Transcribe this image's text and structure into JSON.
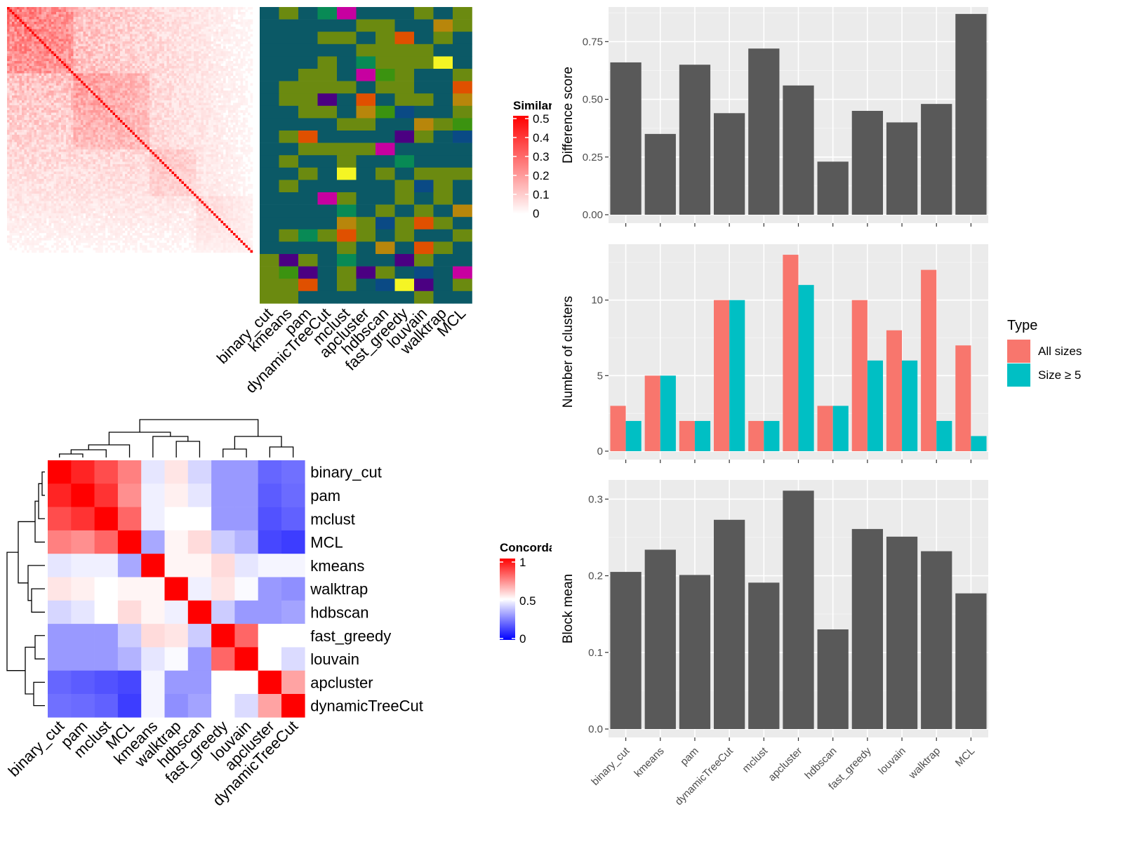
{
  "similarity_legend": {
    "title": "Similarity",
    "ticks": [
      "0.5",
      "0.4",
      "0.3",
      "0.2",
      "0.1",
      "0"
    ],
    "colors": [
      "#ffffff",
      "#ff0000"
    ]
  },
  "concordance_legend": {
    "title": "Concordance",
    "ticks": [
      "1",
      "0.5",
      "0"
    ],
    "colors": [
      "#0000ff",
      "#ffffff",
      "#ff0000"
    ]
  },
  "chart_data": [
    {
      "type": "heatmap",
      "title": "",
      "x_labels": [
        "binary_cut",
        "kmeans",
        "pam",
        "dynamicTreeCut",
        "mclust",
        "apcluster",
        "hdbscan",
        "fast_greedy",
        "louvain",
        "walktrap",
        "MCL"
      ],
      "cluster_palette": [
        "#0b5966",
        "#6b8a10",
        "#088a55",
        "#b8860b",
        "#4b0082",
        "#c700a0",
        "#f5f524",
        "#e05000",
        "#0a4a85",
        "#3b9310"
      ],
      "note": "similarity matrix heatmap with per-method cluster assignment columns"
    },
    {
      "type": "heatmap",
      "title": "",
      "rows": [
        "binary_cut",
        "pam",
        "mclust",
        "MCL",
        "kmeans",
        "walktrap",
        "hdbscan",
        "fast_greedy",
        "louvain",
        "apcluster",
        "dynamicTreeCut"
      ],
      "cols": [
        "binary_cut",
        "pam",
        "mclust",
        "MCL",
        "kmeans",
        "walktrap",
        "hdbscan",
        "fast_greedy",
        "louvain",
        "apcluster",
        "dynamicTreeCut"
      ],
      "values": [
        [
          1.0,
          0.93,
          0.85,
          0.75,
          0.45,
          0.55,
          0.42,
          0.3,
          0.3,
          0.2,
          0.22
        ],
        [
          0.93,
          1.0,
          0.9,
          0.72,
          0.47,
          0.53,
          0.45,
          0.3,
          0.3,
          0.18,
          0.21
        ],
        [
          0.85,
          0.9,
          1.0,
          0.8,
          0.47,
          0.5,
          0.5,
          0.3,
          0.3,
          0.16,
          0.19
        ],
        [
          0.75,
          0.72,
          0.8,
          1.0,
          0.33,
          0.52,
          0.57,
          0.4,
          0.35,
          0.14,
          0.12
        ],
        [
          0.45,
          0.47,
          0.47,
          0.33,
          1.0,
          0.52,
          0.52,
          0.57,
          0.45,
          0.48,
          0.48
        ],
        [
          0.55,
          0.53,
          0.5,
          0.52,
          0.52,
          1.0,
          0.47,
          0.55,
          0.49,
          0.3,
          0.28
        ],
        [
          0.42,
          0.45,
          0.5,
          0.57,
          0.52,
          0.47,
          1.0,
          0.4,
          0.3,
          0.3,
          0.32
        ],
        [
          0.3,
          0.3,
          0.3,
          0.4,
          0.57,
          0.55,
          0.4,
          1.0,
          0.8,
          0.5,
          0.5
        ],
        [
          0.3,
          0.3,
          0.3,
          0.35,
          0.45,
          0.49,
          0.3,
          0.8,
          1.0,
          0.5,
          0.43
        ],
        [
          0.2,
          0.18,
          0.16,
          0.14,
          0.48,
          0.3,
          0.3,
          0.5,
          0.5,
          1.0,
          0.68
        ],
        [
          0.22,
          0.21,
          0.19,
          0.12,
          0.48,
          0.28,
          0.32,
          0.5,
          0.43,
          0.68,
          1.0
        ]
      ],
      "scale": [
        0,
        1
      ]
    },
    {
      "type": "bar",
      "categories": [
        "binary_cut",
        "kmeans",
        "pam",
        "dynamicTreeCut",
        "mclust",
        "apcluster",
        "hdbscan",
        "fast_greedy",
        "louvain",
        "walktrap",
        "MCL"
      ],
      "values": [
        0.66,
        0.35,
        0.65,
        0.44,
        0.72,
        0.56,
        0.23,
        0.45,
        0.4,
        0.48,
        0.87
      ],
      "ylabel": "Difference score",
      "xlabel": "",
      "ylim": [
        0,
        0.9
      ],
      "yticks": [
        "0.00",
        "0.25",
        "0.50",
        "0.75"
      ],
      "color": "#595959"
    },
    {
      "type": "bar",
      "categories": [
        "binary_cut",
        "kmeans",
        "pam",
        "dynamicTreeCut",
        "mclust",
        "apcluster",
        "hdbscan",
        "fast_greedy",
        "louvain",
        "walktrap",
        "MCL"
      ],
      "series": [
        {
          "name": "All sizes",
          "values": [
            3,
            5,
            2,
            10,
            2,
            13,
            3,
            10,
            8,
            12,
            7
          ],
          "color": "#f8766d"
        },
        {
          "name": "Size ≥ 5",
          "values": [
            2,
            5,
            2,
            10,
            2,
            11,
            3,
            6,
            6,
            2,
            1
          ],
          "color": "#00bfc4"
        }
      ],
      "ylabel": "Number of clusters",
      "xlabel": "",
      "ylim": [
        0,
        13.7
      ],
      "yticks": [
        "0",
        "5",
        "10"
      ],
      "legend_title": "Type",
      "legend_position": "right"
    },
    {
      "type": "bar",
      "categories": [
        "binary_cut",
        "kmeans",
        "pam",
        "dynamicTreeCut",
        "mclust",
        "apcluster",
        "hdbscan",
        "fast_greedy",
        "louvain",
        "walktrap",
        "MCL"
      ],
      "values": [
        0.205,
        0.234,
        0.201,
        0.273,
        0.191,
        0.311,
        0.13,
        0.261,
        0.251,
        0.232,
        0.177
      ],
      "ylabel": "Block mean",
      "xlabel": "",
      "ylim": [
        0,
        0.325
      ],
      "yticks": [
        "0.0",
        "0.1",
        "0.2",
        "0.3"
      ],
      "color": "#595959"
    }
  ]
}
